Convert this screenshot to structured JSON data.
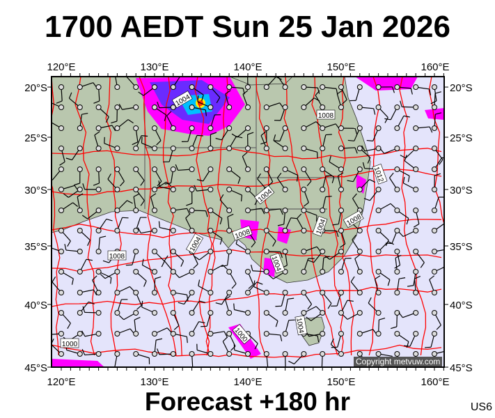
{
  "header": {
    "title": "1700 AEDT Sun 25 Jan 2026"
  },
  "footer": {
    "subtitle": "Forecast +180 hr",
    "code": "US6",
    "copyright": "Copyright metvuw.com"
  },
  "axes": {
    "lon_labels": [
      "120°E",
      "130°E",
      "140°E",
      "150°E",
      "160°E"
    ],
    "lat_labels": [
      "20°S",
      "25°S",
      "30°S",
      "35°S",
      "40°S",
      "45°S"
    ]
  },
  "isobar_labels": [
    "1004",
    "1008",
    "1012",
    "1004",
    "1004",
    "1008",
    "1008",
    "1004",
    "1008",
    "1004",
    "1004",
    "1000",
    "1000"
  ],
  "colors": {
    "sea": "#e4e4fb",
    "land": "#b9c7ae",
    "isobar": "#ff0000",
    "precip_light": "#ff00ff",
    "precip_mid": "#6a2bff",
    "precip_heavy": "#00c0ff"
  }
}
